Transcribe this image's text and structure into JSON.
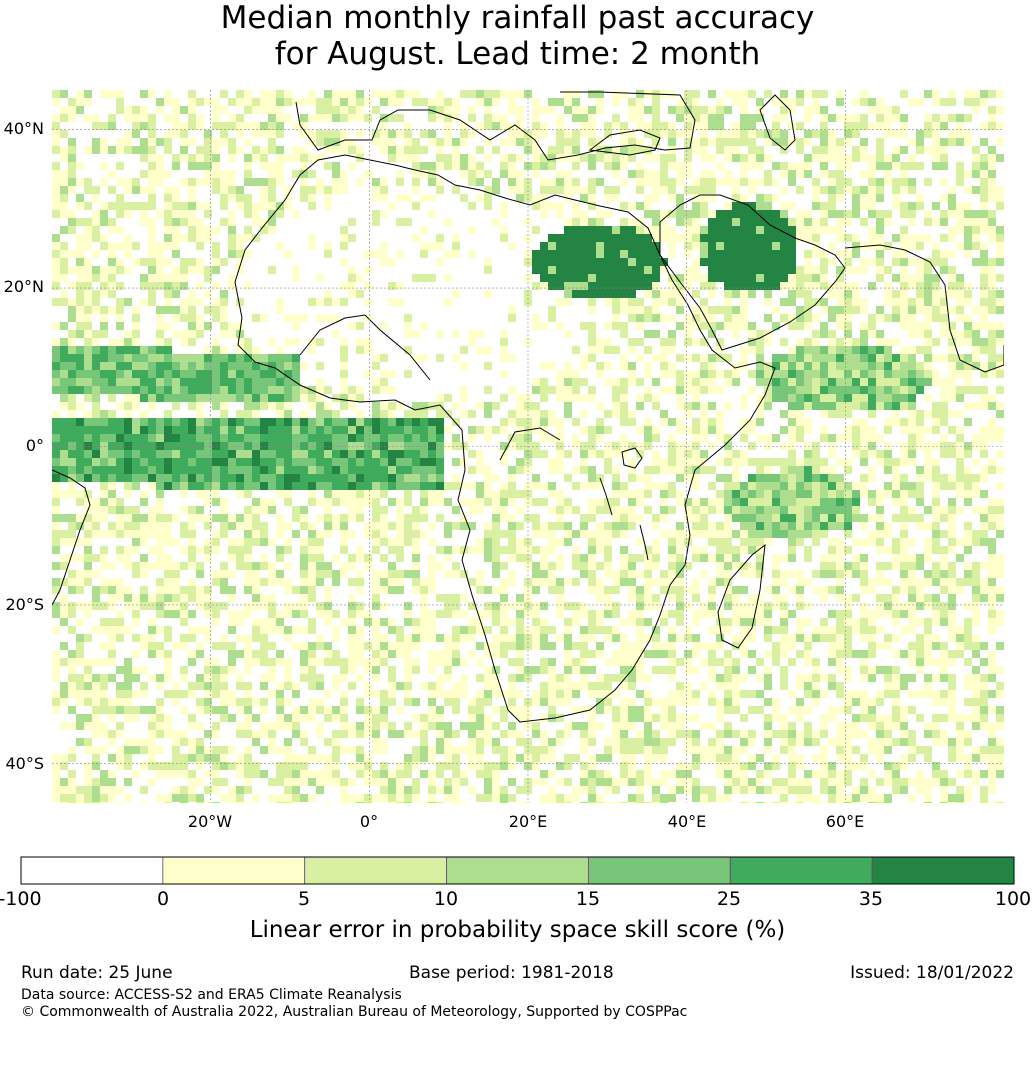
{
  "title": {
    "line1": "Median monthly rainfall past accuracy",
    "line2": "for August. Lead time: 2 month"
  },
  "map": {
    "lat_ticks": [
      "40°N",
      "20°N",
      "0°",
      "20°S",
      "40°S"
    ],
    "lon_ticks": [
      "20°W",
      "0°",
      "20°E",
      "40°E",
      "60°E"
    ],
    "lat_values": [
      40,
      20,
      0,
      -20,
      -40
    ],
    "lon_values": [
      -20,
      0,
      20,
      40,
      60
    ],
    "extent": {
      "lon": [
        -40,
        80
      ],
      "lat": [
        -45,
        45
      ]
    },
    "gridlines": true
  },
  "colorbar": {
    "boundaries": [
      "-100",
      "0",
      "5",
      "10",
      "15",
      "25",
      "35",
      "100"
    ],
    "colors": [
      "#ffffff",
      "#ffffcc",
      "#d9f0a3",
      "#addd8e",
      "#78c679",
      "#41ab5d",
      "#238443"
    ],
    "label": "Linear error in probability space skill score (%)"
  },
  "footer": {
    "run_date": "Run date: 25 June",
    "base_period": "Base period: 1981-2018",
    "issued": "Issued: 18/01/2022",
    "data_source": "Data source: ACCESS-S2 and ERA5 Climate Reanalysis",
    "copyright": "© Commonwealth of Australia 2022, Australian Bureau of Meteorology, Supported by COSPPac"
  }
}
